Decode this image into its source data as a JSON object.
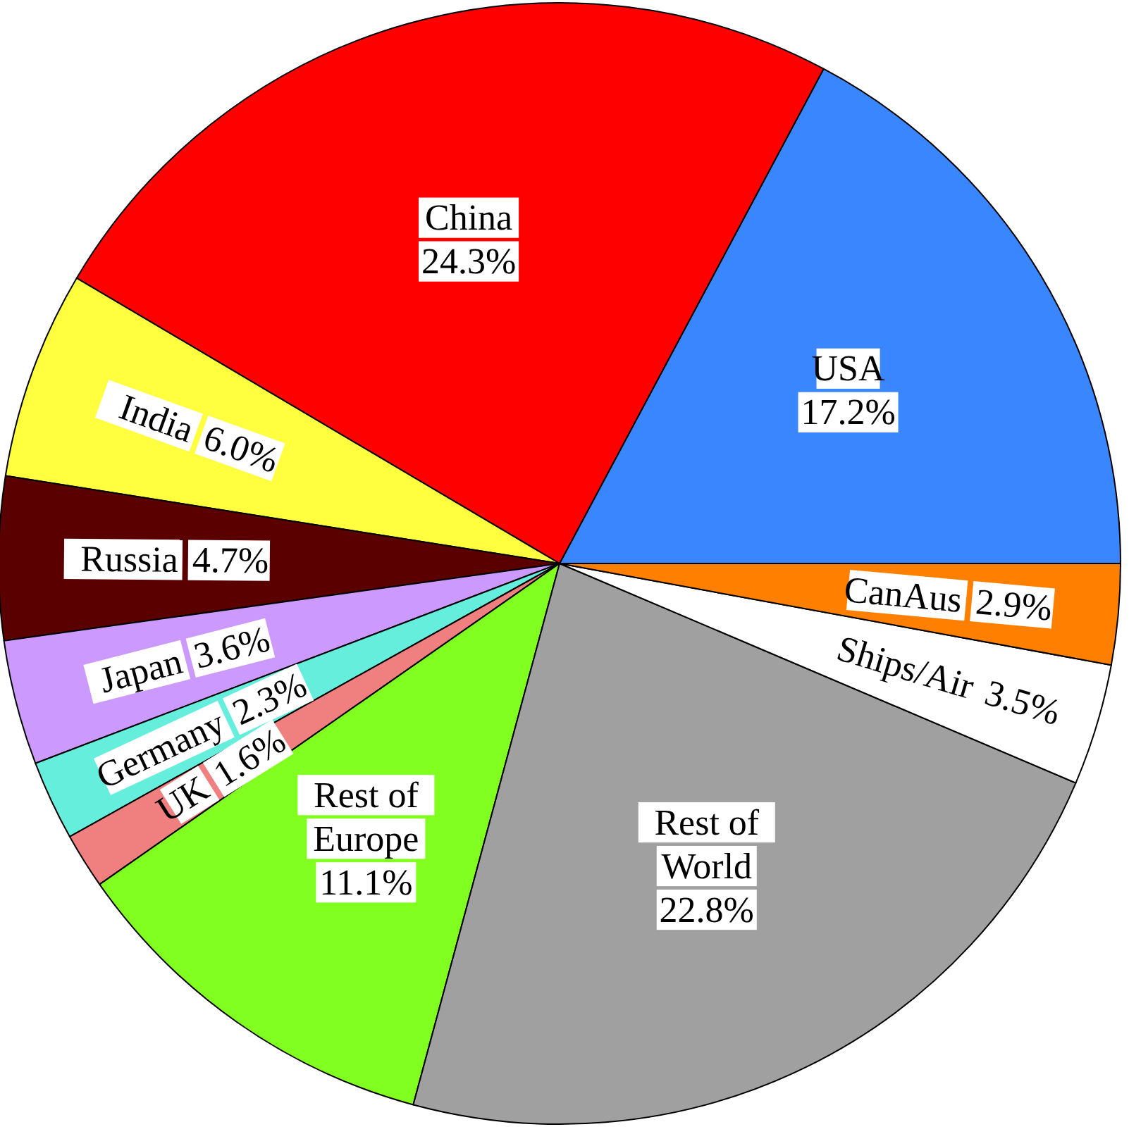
{
  "chart_data": {
    "type": "pie",
    "categories": [
      "USA",
      "China",
      "India",
      "Russia",
      "Japan",
      "Germany",
      "UK",
      "Rest of Europe",
      "Rest of World",
      "Ships/Air",
      "CanAus"
    ],
    "values": [
      17.2,
      24.3,
      6.0,
      4.7,
      3.6,
      2.3,
      1.6,
      11.1,
      22.8,
      3.5,
      2.9
    ],
    "value_labels": [
      "17.2%",
      "24.3%",
      "6.0%",
      "4.7%",
      "3.6%",
      "2.3%",
      "1.6%",
      "11.1%",
      "22.8%",
      "3.5%",
      "2.9%"
    ],
    "colors": [
      "#3a86ff",
      "#ff0000",
      "#ffff40",
      "#5a0000",
      "#cc99ff",
      "#66eedd",
      "#f08080",
      "#80ff20",
      "#a0a0a0",
      "#ffffff",
      "#ff8000"
    ]
  }
}
